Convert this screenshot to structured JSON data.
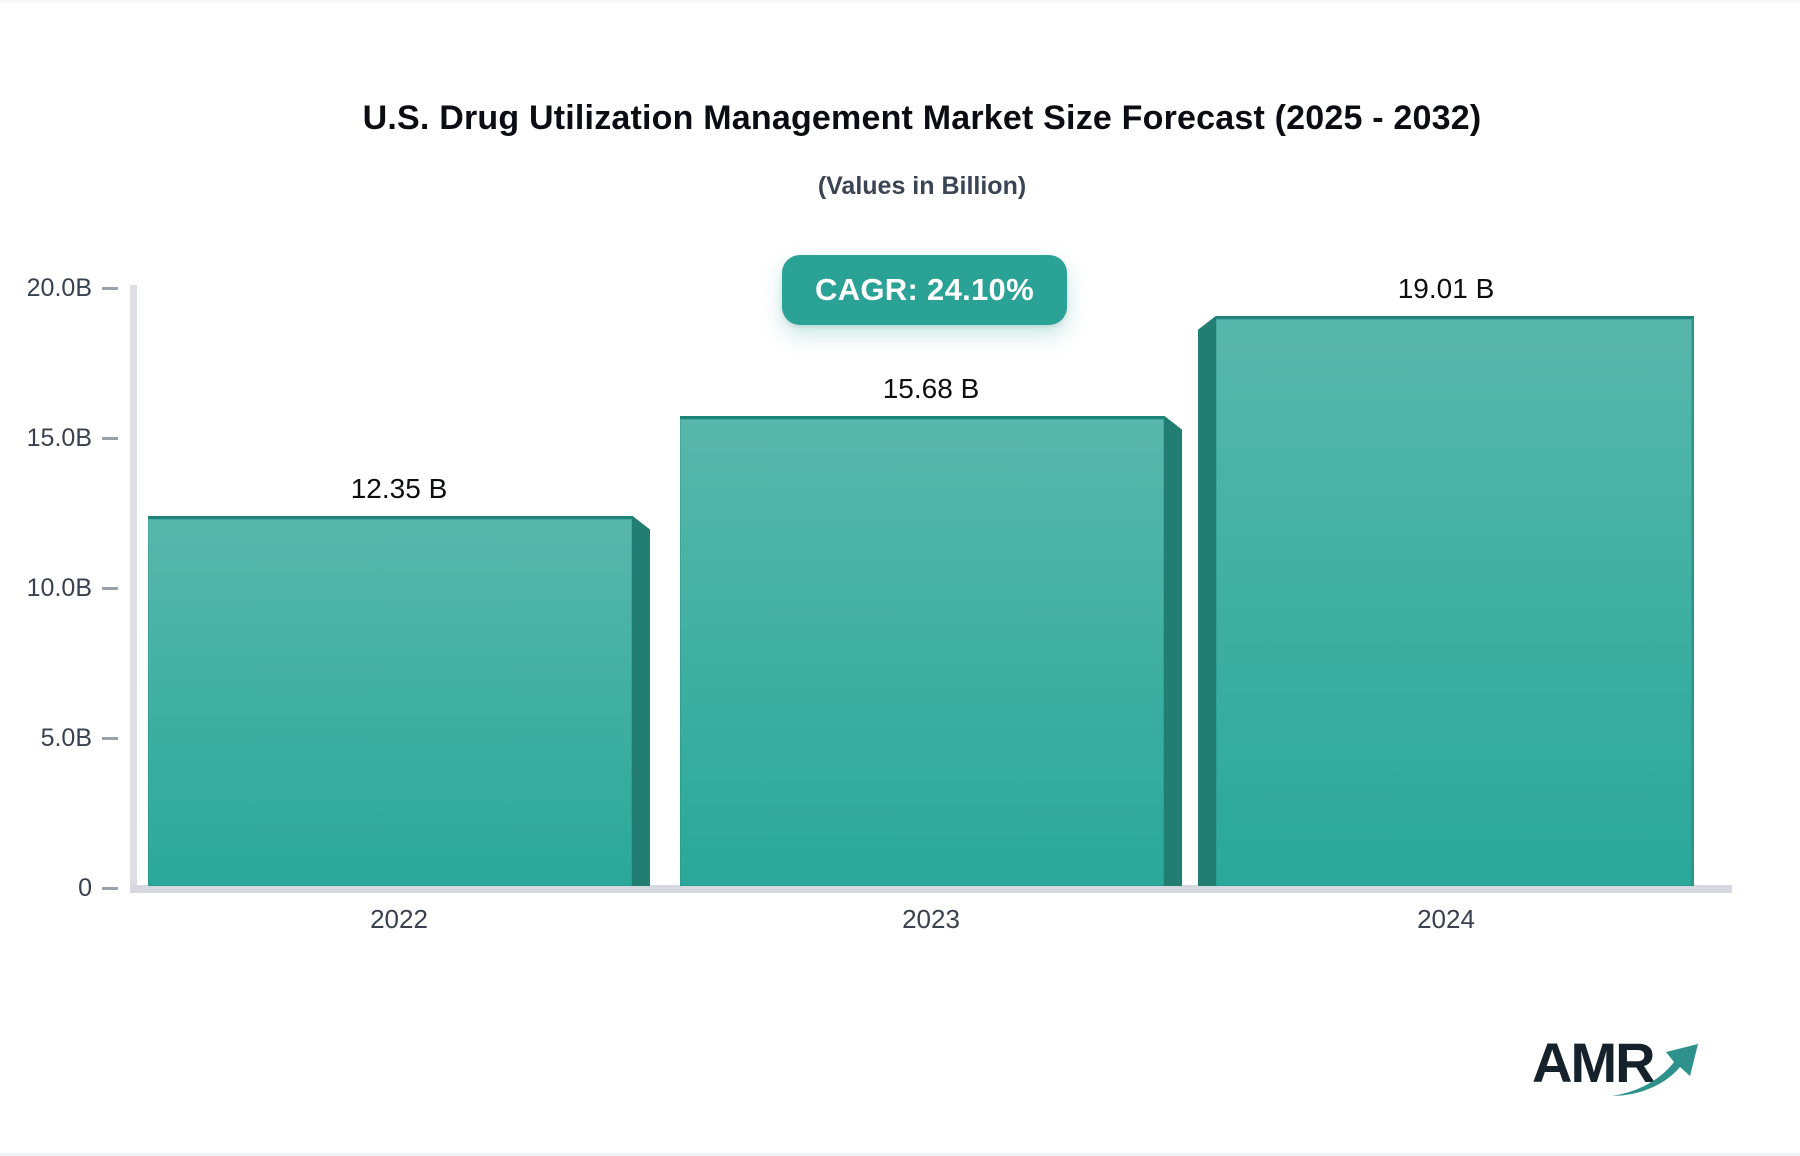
{
  "header": {
    "title": "U.S. Drug Utilization Management Market Size Forecast (2025 - 2032)",
    "subtitle": "(Values in Billion)"
  },
  "badge": {
    "label": "CAGR: 24.10%",
    "color": "#2aa296"
  },
  "chart_data": {
    "type": "bar",
    "title": "U.S. Drug Utilization Management Market Size Forecast (2025 - 2032)",
    "subtitle": "(Values in Billion)",
    "cagr_percent": 24.1,
    "categories": [
      "2022",
      "2023",
      "2024"
    ],
    "values": [
      12.35,
      15.68,
      19.01
    ],
    "value_labels": [
      "12.35 B",
      "15.68 B",
      "19.01 B"
    ],
    "unit": "Billion USD",
    "xlabel": "",
    "ylabel": "",
    "ylim": [
      0,
      20
    ],
    "yticks": [
      0,
      5,
      10,
      15,
      20
    ],
    "ytick_labels": [
      "0",
      "5.0B",
      "10.0B",
      "15.0B",
      "20.0B"
    ],
    "grid": false,
    "legend": false,
    "colors": {
      "bar_top": "#58b7ab",
      "bar_bottom": "#2aa89a",
      "bar_border": "#1e857b",
      "bar_side_panel": "#227d73",
      "axis_line": "#d5d8de",
      "tick": "#9aa1ac",
      "label_text": "#39414f"
    }
  },
  "logo": {
    "text": "AMR",
    "arrow_icon": "growth-arrow-icon",
    "arrow_color": "#2e918b"
  }
}
